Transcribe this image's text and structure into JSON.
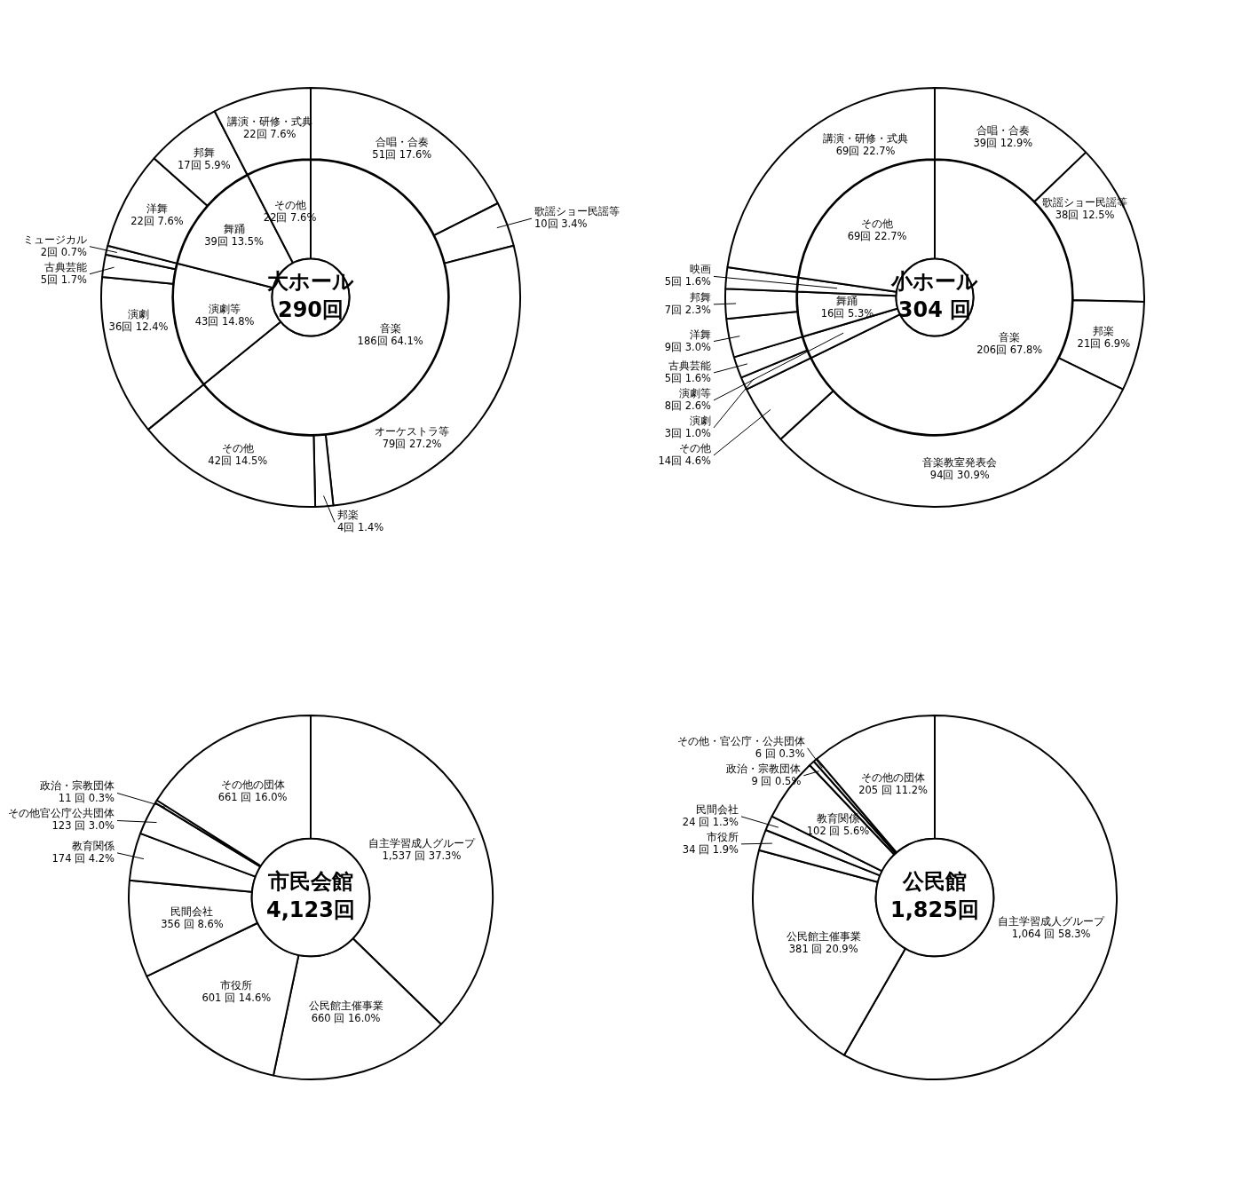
{
  "chart_data": [
    {
      "type": "donut",
      "title": "大ホール",
      "subtitle": "290回",
      "color": "#ffffff",
      "categories": [
        "音楽",
        "演劇等",
        "舞踊",
        "その他"
      ],
      "values": [
        186,
        43,
        39,
        22
      ],
      "value_labels": [
        "186回 64.1%",
        "43回 14.8%",
        "39回 13.5%",
        "22回 7.6%"
      ]
    },
    {
      "type": "donut",
      "color": "#ffffff",
      "categories": [
        "合唱・合奏",
        "歌謡ショー民謡等",
        "オーケストラ等",
        "邦楽",
        "その他",
        "演劇",
        "古典芸能",
        "ミュージカル",
        "洋舞",
        "邦舞",
        "講演・研修・式典"
      ],
      "values": [
        51,
        10,
        79,
        4,
        42,
        36,
        5,
        2,
        22,
        17,
        22
      ],
      "value_labels": [
        "51回 17.6%",
        "10回 3.4%",
        "79回 27.2%",
        "4回 1.4%",
        "42回 14.5%",
        "36回 12.4%",
        "5回 1.7%",
        "2回 0.7%",
        "22回 7.6%",
        "17回 5.9%",
        "22回 7.6%"
      ]
    },
    {
      "type": "donut",
      "title": "小ホール",
      "subtitle": "304 回",
      "color": "#ffffff",
      "categories": [
        "音楽",
        "演劇等",
        "舞踊",
        "映画",
        "その他"
      ],
      "values": [
        206,
        8,
        16,
        5,
        69
      ],
      "value_labels": [
        "206回 67.8%",
        "8回 2.6%",
        "16回 5.3%",
        "5回 1.6%",
        "69回 22.7%"
      ]
    },
    {
      "type": "donut",
      "color": "#ffffff",
      "categories": [
        "合唱・合奏",
        "歌謡ショー民謡等",
        "邦楽",
        "音楽教室発表会",
        "その他",
        "演劇",
        "古典芸能",
        "洋舞",
        "邦舞",
        null,
        "講演・研修・式典"
      ],
      "values": [
        39,
        38,
        21,
        94,
        14,
        3,
        5,
        9,
        7,
        5,
        69
      ],
      "value_labels": [
        "39回 12.9%",
        "38回 12.5%",
        "21回 6.9%",
        "94回 30.9%",
        "14回 4.6%",
        "3回 1.0%",
        "5回 1.6%",
        "9回 3.0%",
        "7回 2.3%",
        null,
        "69回 22.7%"
      ]
    },
    {
      "type": "donut",
      "title": "市民会館",
      "subtitle": "4,123回",
      "color": "#ffffff",
      "categories": [
        "自主学習成人グループ",
        "公民館主催事業",
        "市役所",
        "民間会社",
        "教育関係",
        "その他官公庁公共団体",
        "政治・宗教団体",
        "その他の団体"
      ],
      "values": [
        1537,
        660,
        601,
        356,
        174,
        123,
        11,
        661
      ],
      "value_labels": [
        "1,537 回 37.3%",
        "660 回 16.0%",
        "601 回 14.6%",
        "356 回 8.6%",
        "174 回 4.2%",
        "123 回 3.0%",
        "11 回 0.3%",
        "661 回 16.0%"
      ]
    },
    {
      "type": "donut",
      "title": "公民館",
      "subtitle": "1,825回",
      "color": "#ffffff",
      "categories": [
        "自主学習成人グループ",
        "公民館主催事業",
        "市役所",
        "民間会社",
        "教育関係",
        "政治・宗教団体",
        "その他・官公庁・公共団体",
        "その他の団体"
      ],
      "values": [
        1064,
        381,
        34,
        24,
        102,
        9,
        6,
        205
      ],
      "value_labels": [
        "1,064 回 58.3%",
        "381 回 20.9%",
        "34 回 1.9%",
        "24 回 1.3%",
        "102 回 5.6%",
        "9 回 0.5%",
        "6 回 0.3%",
        "205 回 11.2%"
      ]
    }
  ]
}
